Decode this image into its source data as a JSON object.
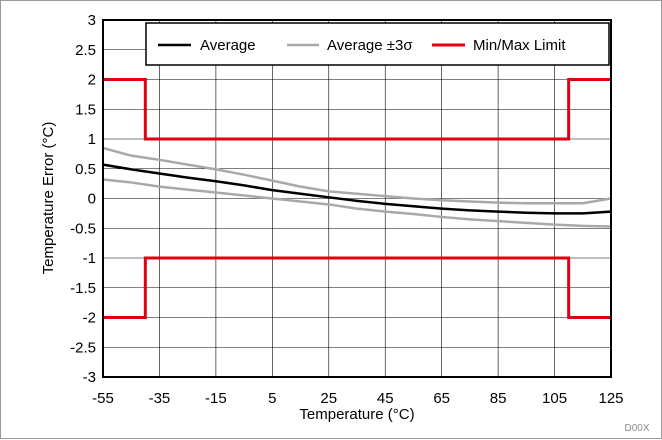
{
  "chart_data": {
    "type": "line",
    "xlabel": "Temperature (°C)",
    "ylabel": "Temperature Error (°C)",
    "xlim": [
      -55,
      125
    ],
    "ylim": [
      -3,
      3
    ],
    "xticks": [
      -55,
      -35,
      -15,
      5,
      25,
      45,
      65,
      85,
      105,
      125
    ],
    "yticks": [
      3,
      2.5,
      2,
      1.5,
      1,
      0.5,
      0,
      -0.5,
      -1,
      -1.5,
      -2,
      -2.5,
      -3
    ],
    "ytick_labels": [
      "3",
      "2.5",
      "2",
      "1.5",
      "1",
      "0.5",
      "0",
      "-0.5",
      "-1",
      "-1.5",
      "-2",
      "-2.5",
      "-3"
    ],
    "xtick_labels": [
      "-55",
      "-35",
      "-15",
      "5",
      "25",
      "45",
      "65",
      "85",
      "105",
      "125"
    ],
    "grid": true,
    "legend_position": "top-right",
    "series": [
      {
        "name": "Average",
        "color": "#000000",
        "x": [
          -55,
          -45,
          -35,
          -25,
          -15,
          -5,
          5,
          15,
          25,
          35,
          45,
          55,
          65,
          75,
          85,
          95,
          105,
          115,
          125
        ],
        "y": [
          0.57,
          0.49,
          0.42,
          0.35,
          0.29,
          0.22,
          0.14,
          0.08,
          0.02,
          -0.04,
          -0.09,
          -0.13,
          -0.17,
          -0.2,
          -0.22,
          -0.24,
          -0.25,
          -0.25,
          -0.22
        ]
      },
      {
        "name": "Average ±3σ",
        "color": "#a9a9a9",
        "x": [
          -55,
          -45,
          -35,
          -25,
          -15,
          -5,
          5,
          15,
          25,
          35,
          45,
          55,
          65,
          75,
          85,
          95,
          105,
          115,
          125
        ],
        "y": [
          0.85,
          0.72,
          0.65,
          0.57,
          0.49,
          0.4,
          0.3,
          0.2,
          0.12,
          0.08,
          0.04,
          0.0,
          -0.03,
          -0.05,
          -0.07,
          -0.08,
          -0.08,
          -0.08,
          0.0
        ]
      },
      {
        "name": "Average ±3σ lower",
        "color": "#a9a9a9",
        "x": [
          -55,
          -45,
          -35,
          -25,
          -15,
          -5,
          5,
          15,
          25,
          35,
          45,
          55,
          65,
          75,
          85,
          95,
          105,
          115,
          125
        ],
        "y": [
          0.32,
          0.27,
          0.2,
          0.15,
          0.1,
          0.05,
          0.0,
          -0.05,
          -0.1,
          -0.17,
          -0.22,
          -0.26,
          -0.31,
          -0.35,
          -0.38,
          -0.41,
          -0.44,
          -0.46,
          -0.47
        ]
      },
      {
        "name": "Min/Max Limit",
        "color": "#e0000f",
        "x": [
          -55,
          -40,
          -40,
          110,
          110,
          125
        ],
        "y": [
          2,
          2,
          1,
          1,
          2,
          2
        ]
      },
      {
        "name": "Min/Max Limit lower",
        "color": "#e0000f",
        "x": [
          -55,
          -40,
          -40,
          110,
          110,
          125
        ],
        "y": [
          -2,
          -2,
          -1,
          -1,
          -2,
          -2
        ]
      }
    ],
    "legend": [
      {
        "label": "Average",
        "color": "#000000"
      },
      {
        "label": "Average ±3σ",
        "color": "#a9a9a9"
      },
      {
        "label": "Min/Max Limit",
        "color": "#e0000f"
      }
    ],
    "footnote": "D00X"
  }
}
